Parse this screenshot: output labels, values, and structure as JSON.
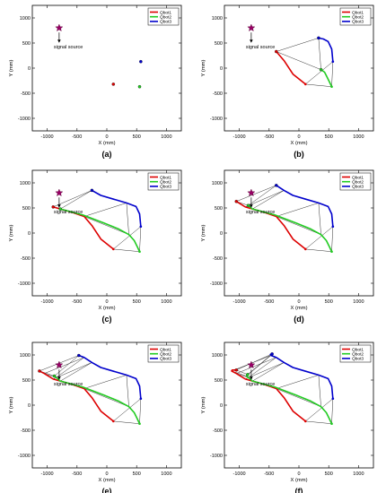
{
  "chart_data": [
    {
      "type": "line",
      "caption": "(a)",
      "xlabel": "X (mm)",
      "ylabel": "Y (mm)",
      "xlim": [
        -1250,
        1250
      ],
      "ylim": [
        -1250,
        1250
      ],
      "xticks": [
        "-1000",
        "-500",
        "0",
        "500",
        "1000"
      ],
      "yticks": [
        "-1000",
        "-500",
        "0",
        "500",
        "1000"
      ],
      "legend": [
        "Qbot1",
        "Qbot2",
        "Qbot3"
      ],
      "legend_position": "top-right",
      "source_label": "signal source",
      "source": [
        -800,
        800
      ],
      "series": [
        {
          "name": "Qbot1",
          "x": [
            110
          ],
          "y": [
            -320
          ]
        },
        {
          "name": "Qbot2",
          "x": [
            550
          ],
          "y": [
            -370
          ]
        },
        {
          "name": "Qbot3",
          "x": [
            570
          ],
          "y": [
            130
          ]
        }
      ]
    },
    {
      "type": "line",
      "caption": "(b)",
      "xlabel": "X (mm)",
      "ylabel": "Y (mm)",
      "xlim": [
        -1250,
        1250
      ],
      "ylim": [
        -1250,
        1250
      ],
      "xticks": [
        "-1000",
        "-500",
        "0",
        "500",
        "1000"
      ],
      "yticks": [
        "-1000",
        "-500",
        "0",
        "500",
        "1000"
      ],
      "legend": [
        "Qbot1",
        "Qbot2",
        "Qbot3"
      ],
      "legend_position": "top-right",
      "source_label": "signal source",
      "source": [
        -800,
        800
      ],
      "series": [
        {
          "name": "Qbot1",
          "x": [
            110,
            -100,
            -250,
            -380
          ],
          "y": [
            -320,
            -120,
            150,
            330
          ]
        },
        {
          "name": "Qbot2",
          "x": [
            550,
            510,
            460,
            430,
            370
          ],
          "y": [
            -370,
            -270,
            -150,
            -80,
            -30
          ]
        },
        {
          "name": "Qbot3",
          "x": [
            570,
            550,
            490,
            410,
            330
          ],
          "y": [
            130,
            380,
            530,
            580,
            600
          ]
        }
      ],
      "links": [
        [
          [
            110,
            -320
          ],
          [
            550,
            -370
          ],
          [
            570,
            130
          ]
        ],
        [
          [
            -380,
            330
          ],
          [
            370,
            -30
          ],
          [
            330,
            600
          ]
        ]
      ]
    },
    {
      "type": "line",
      "caption": "(c)",
      "xlabel": "X (mm)",
      "ylabel": "Y (mm)",
      "xlim": [
        -1250,
        1250
      ],
      "ylim": [
        -1250,
        1250
      ],
      "xticks": [
        "-1000",
        "-500",
        "0",
        "500",
        "1000"
      ],
      "yticks": [
        "-1000",
        "-500",
        "0",
        "500",
        "1000"
      ],
      "legend": [
        "Qbot1",
        "Qbot2",
        "Qbot3"
      ],
      "legend_position": "top-right",
      "source_label": "signal source",
      "source": [
        -800,
        800
      ],
      "series": [
        {
          "name": "Qbot1",
          "x": [
            110,
            -100,
            -250,
            -380,
            -600,
            -900
          ],
          "y": [
            -320,
            -120,
            150,
            330,
            420,
            520
          ]
        },
        {
          "name": "Qbot2",
          "x": [
            550,
            510,
            460,
            370,
            200,
            -50,
            -400,
            -780
          ],
          "y": [
            -370,
            -270,
            -150,
            -30,
            80,
            200,
            360,
            480
          ]
        },
        {
          "name": "Qbot3",
          "x": [
            570,
            550,
            490,
            330,
            100,
            -100,
            -250
          ],
          "y": [
            130,
            380,
            530,
            600,
            680,
            750,
            850
          ]
        }
      ],
      "links": [
        [
          [
            110,
            -320
          ],
          [
            550,
            -370
          ],
          [
            570,
            130
          ]
        ],
        [
          [
            -380,
            330
          ],
          [
            370,
            -30
          ],
          [
            330,
            600
          ]
        ],
        [
          [
            -900,
            520
          ],
          [
            -780,
            480
          ],
          [
            -250,
            850
          ]
        ]
      ]
    },
    {
      "type": "line",
      "caption": "(d)",
      "xlabel": "X (mm)",
      "ylabel": "Y (mm)",
      "xlim": [
        -1250,
        1250
      ],
      "ylim": [
        -1250,
        1250
      ],
      "xticks": [
        "-1000",
        "-500",
        "0",
        "500",
        "1000"
      ],
      "yticks": [
        "-1000",
        "-500",
        "0",
        "500",
        "1000"
      ],
      "legend": [
        "Qbot1",
        "Qbot2",
        "Qbot3"
      ],
      "legend_position": "top-right",
      "source_label": "signal source",
      "source": [
        -800,
        800
      ],
      "series": [
        {
          "name": "Qbot1",
          "x": [
            110,
            -100,
            -250,
            -380,
            -600,
            -900,
            -1050
          ],
          "y": [
            -320,
            -120,
            150,
            330,
            420,
            520,
            630
          ]
        },
        {
          "name": "Qbot2",
          "x": [
            550,
            510,
            460,
            370,
            200,
            -50,
            -400,
            -780,
            -850
          ],
          "y": [
            -370,
            -270,
            -150,
            -30,
            80,
            200,
            360,
            480,
            550
          ]
        },
        {
          "name": "Qbot3",
          "x": [
            570,
            550,
            490,
            330,
            100,
            -100,
            -250,
            -380
          ],
          "y": [
            130,
            380,
            530,
            600,
            680,
            750,
            850,
            950
          ]
        }
      ],
      "links": [
        [
          [
            110,
            -320
          ],
          [
            550,
            -370
          ],
          [
            570,
            130
          ]
        ],
        [
          [
            -380,
            330
          ],
          [
            370,
            -30
          ],
          [
            330,
            600
          ]
        ],
        [
          [
            -900,
            520
          ],
          [
            -780,
            480
          ],
          [
            -250,
            850
          ]
        ],
        [
          [
            -1050,
            630
          ],
          [
            -850,
            550
          ],
          [
            -380,
            950
          ]
        ]
      ]
    },
    {
      "type": "line",
      "caption": "(e)",
      "xlabel": "X (mm)",
      "ylabel": "Y (mm)",
      "xlim": [
        -1250,
        1250
      ],
      "ylim": [
        -1250,
        1250
      ],
      "xticks": [
        "-1000",
        "-500",
        "0",
        "500",
        "1000"
      ],
      "yticks": [
        "-1000",
        "-500",
        "0",
        "500",
        "1000"
      ],
      "legend": [
        "Qbot1",
        "Qbot2",
        "Qbot3"
      ],
      "legend_position": "top-right",
      "source_label": "signal source",
      "source": [
        -800,
        800
      ],
      "series": [
        {
          "name": "Qbot1",
          "x": [
            110,
            -100,
            -250,
            -380,
            -600,
            -900,
            -1050,
            -1130
          ],
          "y": [
            -320,
            -120,
            150,
            330,
            420,
            520,
            630,
            680
          ]
        },
        {
          "name": "Qbot2",
          "x": [
            550,
            510,
            460,
            370,
            200,
            -50,
            -400,
            -780,
            -850,
            -880
          ],
          "y": [
            -370,
            -270,
            -150,
            -30,
            80,
            200,
            360,
            480,
            550,
            580
          ]
        },
        {
          "name": "Qbot3",
          "x": [
            570,
            550,
            490,
            330,
            100,
            -100,
            -250,
            -380,
            -470
          ],
          "y": [
            130,
            380,
            530,
            600,
            680,
            750,
            850,
            950,
            990
          ]
        }
      ],
      "links": [
        [
          [
            110,
            -320
          ],
          [
            550,
            -370
          ],
          [
            570,
            130
          ]
        ],
        [
          [
            -380,
            330
          ],
          [
            370,
            -30
          ],
          [
            330,
            600
          ]
        ],
        [
          [
            -900,
            520
          ],
          [
            -780,
            480
          ],
          [
            -250,
            850
          ]
        ],
        [
          [
            -1050,
            630
          ],
          [
            -850,
            550
          ],
          [
            -380,
            950
          ]
        ],
        [
          [
            -1130,
            680
          ],
          [
            -880,
            580
          ],
          [
            -470,
            990
          ]
        ]
      ]
    },
    {
      "type": "line",
      "caption": "(f)",
      "xlabel": "X (mm)",
      "ylabel": "Y (mm)",
      "xlim": [
        -1250,
        1250
      ],
      "ylim": [
        -1250,
        1250
      ],
      "xticks": [
        "-1000",
        "-500",
        "0",
        "500",
        "1000"
      ],
      "yticks": [
        "-1000",
        "-500",
        "0",
        "500",
        "1000"
      ],
      "legend": [
        "Qbot1",
        "Qbot2",
        "Qbot3"
      ],
      "legend_position": "top-right",
      "source_label": "signal source",
      "source": [
        -800,
        800
      ],
      "series": [
        {
          "name": "Qbot1",
          "x": [
            110,
            -100,
            -250,
            -380,
            -600,
            -900,
            -1050,
            -1130,
            -1120,
            -1050
          ],
          "y": [
            -320,
            -120,
            150,
            330,
            420,
            520,
            630,
            680,
            700,
            700
          ]
        },
        {
          "name": "Qbot2",
          "x": [
            550,
            510,
            460,
            370,
            200,
            -50,
            -400,
            -780,
            -850,
            -880,
            -870,
            -860
          ],
          "y": [
            -370,
            -270,
            -150,
            -30,
            80,
            200,
            360,
            480,
            550,
            580,
            600,
            610
          ]
        },
        {
          "name": "Qbot3",
          "x": [
            570,
            550,
            490,
            330,
            100,
            -100,
            -250,
            -380,
            -470,
            -480,
            -450
          ],
          "y": [
            130,
            380,
            530,
            600,
            680,
            750,
            850,
            950,
            990,
            1010,
            1020
          ]
        }
      ],
      "links": [
        [
          [
            110,
            -320
          ],
          [
            550,
            -370
          ],
          [
            570,
            130
          ]
        ],
        [
          [
            -380,
            330
          ],
          [
            370,
            -30
          ],
          [
            330,
            600
          ]
        ],
        [
          [
            -900,
            520
          ],
          [
            -780,
            480
          ],
          [
            -250,
            850
          ]
        ],
        [
          [
            -1050,
            630
          ],
          [
            -850,
            550
          ],
          [
            -380,
            950
          ]
        ],
        [
          [
            -1130,
            680
          ],
          [
            -880,
            580
          ],
          [
            -470,
            990
          ]
        ],
        [
          [
            -1050,
            700
          ],
          [
            -860,
            610
          ],
          [
            -450,
            1020
          ]
        ]
      ]
    }
  ],
  "colors": {
    "Qbot1": "#dd0000",
    "Qbot2": "#22cc22",
    "Qbot3": "#0000cc",
    "source": "#990066",
    "link": "#333333"
  }
}
